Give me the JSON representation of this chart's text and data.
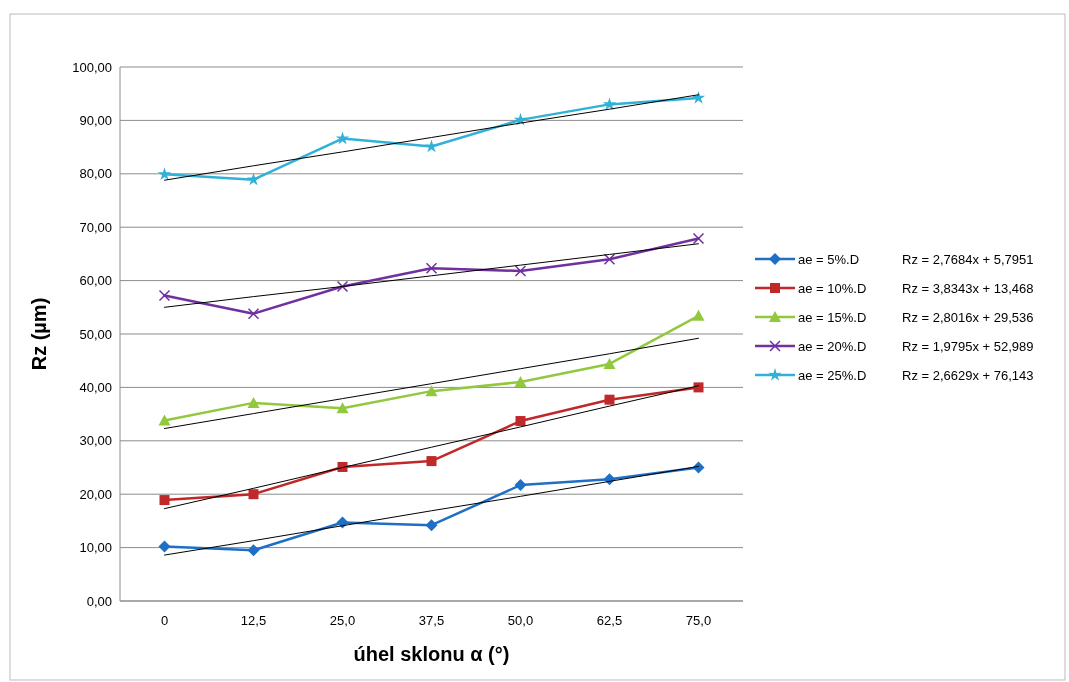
{
  "chart_data": {
    "type": "line",
    "xlabel": "úhel sklonu α (°)",
    "ylabel": "Rz (µm)",
    "categories": [
      "0",
      "12,5",
      "25,0",
      "37,5",
      "50,0",
      "62,5",
      "75,0"
    ],
    "ylim": [
      0,
      100
    ],
    "yticks": [
      {
        "value": 0,
        "label": "0,00"
      },
      {
        "value": 10,
        "label": "10,00"
      },
      {
        "value": 20,
        "label": "20,00"
      },
      {
        "value": 30,
        "label": "30,00"
      },
      {
        "value": 40,
        "label": "40,00"
      },
      {
        "value": 50,
        "label": "50,00"
      },
      {
        "value": 60,
        "label": "60,00"
      },
      {
        "value": 70,
        "label": "70,00"
      },
      {
        "value": 80,
        "label": "80,00"
      },
      {
        "value": 90,
        "label": "90,00"
      },
      {
        "value": 100,
        "label": "100,00"
      }
    ],
    "grid": "y",
    "legend": "right",
    "series": [
      {
        "name": "ae = 5%.D",
        "color": "#1f6fc5",
        "marker": "diamond",
        "values": [
          10.2,
          9.5,
          14.7,
          14.2,
          21.7,
          22.8,
          25.0
        ]
      },
      {
        "name": "ae = 10%.D",
        "color": "#c0282a",
        "marker": "square",
        "values": [
          18.9,
          20.0,
          25.1,
          26.2,
          33.7,
          37.7,
          40.0
        ]
      },
      {
        "name": "ae = 15%.D",
        "color": "#92c83e",
        "marker": "triangle",
        "values": [
          33.8,
          37.1,
          36.1,
          39.3,
          41.0,
          44.4,
          53.4
        ]
      },
      {
        "name": "ae = 20%.D",
        "color": "#7030a0",
        "marker": "cross",
        "values": [
          57.2,
          53.8,
          58.9,
          62.3,
          61.8,
          64.0,
          67.9
        ]
      },
      {
        "name": "ae = 25%.D",
        "color": "#31b0d8",
        "marker": "star",
        "values": [
          79.9,
          78.9,
          86.6,
          85.1,
          90.1,
          93.0,
          94.2
        ]
      },
      {
        "color": "#000000",
        "marker": "none",
        "values": [
          8.6,
          11.3,
          14.1,
          16.9,
          19.6,
          22.4,
          25.2
        ]
      },
      {
        "color": "#000000",
        "marker": "none",
        "values": [
          17.3,
          21.1,
          25.0,
          28.8,
          32.6,
          36.5,
          40.3
        ]
      },
      {
        "color": "#000000",
        "marker": "none",
        "values": [
          32.3,
          35.1,
          37.9,
          40.7,
          43.5,
          46.3,
          49.2
        ]
      },
      {
        "color": "#000000",
        "marker": "none",
        "values": [
          55.0,
          57.0,
          58.9,
          60.9,
          62.9,
          64.9,
          66.9
        ]
      },
      {
        "color": "#000000",
        "marker": "none",
        "values": [
          78.8,
          81.5,
          84.1,
          86.8,
          89.5,
          92.1,
          94.8
        ]
      }
    ],
    "annotations": [
      "Rz = 2,7684x + 5,7951",
      "Rz = 3,8343x + 13,468",
      "Rz = 2,8016x + 29,536",
      "Rz = 1,9795x + 52,989",
      "Rz = 2,6629x + 76,143"
    ]
  }
}
